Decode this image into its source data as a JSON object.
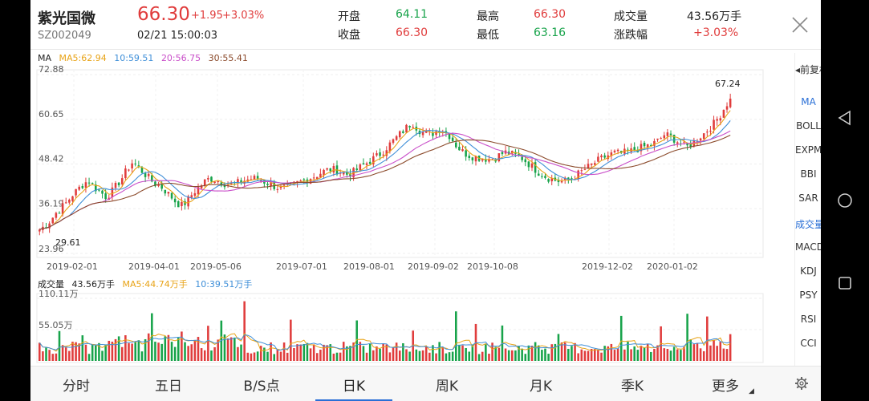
{
  "header": {
    "stock_name": "紫光国微",
    "stock_code": "SZ002049",
    "price": "66.30",
    "change": "+1.95",
    "change_pct": "+3.03%",
    "datetime": "02/21 15:00:03",
    "open_label": "开盘",
    "open_value": "64.11",
    "close_label": "收盘",
    "close_value": "66.30",
    "high_label": "最高",
    "high_value": "66.30",
    "low_label": "最低",
    "low_value": "63.16",
    "volume_label": "成交量",
    "volume_value": "43.56万手",
    "change_pct_label": "涨跌幅",
    "change_pct_value": "+3.03%"
  },
  "ma_legend": {
    "label": "MA",
    "ma5": "MA5:62.94",
    "ma10": "10:59.51",
    "ma20": "20:56.75",
    "ma30": "30:55.41"
  },
  "vol_legend": {
    "label": "成交量",
    "value": "43.56万手",
    "ma5": "MA5:44.74万手",
    "ma10": "10:39.51万手"
  },
  "colors": {
    "up": "#e03c3c",
    "down": "#17a34a",
    "ma5": "#e8a317",
    "ma10": "#3f8fd8",
    "ma20": "#c94fc9",
    "ma30": "#8b4a2b",
    "tab_indicator": "#2a6fd6"
  },
  "right_menu": [
    "前复权",
    "MA",
    "BOLL",
    "EXPMA",
    "BBI",
    "SAR",
    "成交量",
    "MACD",
    "KDJ",
    "PSY",
    "RSI",
    "CCI"
  ],
  "right_menu_active": [
    "MA",
    "成交量"
  ],
  "tabs": [
    "分时",
    "五日",
    "B/S点",
    "日K",
    "周K",
    "月K",
    "季K",
    "更多"
  ],
  "active_tab": "日K",
  "chart_data": {
    "type": "candlestick",
    "price_axis": [
      "72.88",
      "60.65",
      "48.42",
      "36.19",
      "23.96"
    ],
    "ylim": [
      23.96,
      72.88
    ],
    "x_dates": [
      "2019-02-01",
      "2019-04-01",
      "2019-05-06",
      "2019-07-01",
      "2019-08-01",
      "2019-09-02",
      "2019-10-08",
      "2019-12-02",
      "2020-01-02"
    ],
    "max_label": "67.24",
    "min_label": "29.61",
    "volume_axis": [
      "110.11万",
      "55.05万"
    ],
    "trend_closes": [
      30.5,
      31.5,
      33,
      35,
      36.5,
      38,
      40,
      41.5,
      43,
      44,
      42,
      41,
      39.5,
      40.5,
      42.5,
      44.5,
      47,
      49,
      47.5,
      46,
      44.5,
      43,
      42.5,
      41,
      39.5,
      37.8,
      37,
      38.5,
      40.5,
      42,
      43.5,
      44.5,
      44.2,
      43.5,
      43,
      42.8,
      43.2,
      43.8,
      44.2,
      44.5,
      44.3,
      43.6,
      43,
      42.2,
      41.8,
      42,
      42.5,
      43.2,
      43.8,
      44.5,
      45,
      45.8,
      46.5,
      47,
      46.8,
      46.2,
      45.6,
      46,
      47,
      48,
      49,
      50,
      51,
      52.5,
      54,
      55.5,
      57,
      58.5,
      59.8,
      58,
      57,
      56.5,
      57,
      58,
      57.5,
      55.8,
      53.5,
      52,
      51,
      50.5,
      50.2,
      50,
      49.8,
      50,
      51,
      51.6,
      51.2,
      50.6,
      50,
      48.8,
      47.5,
      46.2,
      45.2,
      44.5,
      44,
      43.6,
      43.8,
      44.5,
      45.5,
      46.5,
      47.5,
      48.5,
      49.5,
      50.3,
      51,
      51.5,
      51.3,
      51.6,
      52,
      52.5,
      53,
      53.5,
      54,
      55,
      56.5,
      56,
      55,
      54,
      53,
      54,
      55.5,
      56.5,
      58,
      59.5,
      61.5,
      64,
      66.3
    ]
  }
}
